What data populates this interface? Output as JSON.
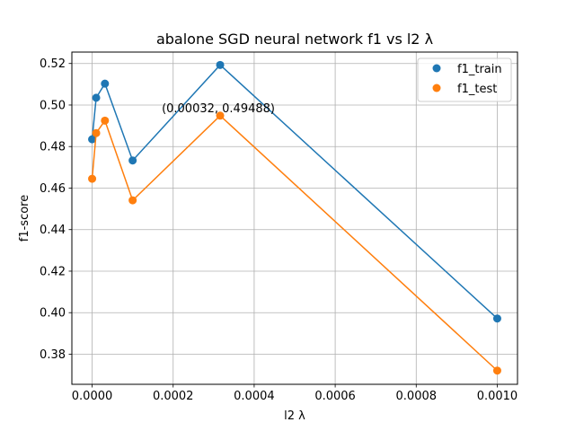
{
  "chart_data": {
    "type": "line",
    "title": "abalone SGD neural network f1 vs l2 λ",
    "xlabel": "l2 λ",
    "ylabel": "f1-score",
    "xlim": [
      -5e-05,
      0.00105
    ],
    "ylim": [
      0.3655,
      0.5255
    ],
    "grid": true,
    "legend_position": "top-right",
    "xticks": [
      0.0,
      0.0002,
      0.0004,
      0.0006,
      0.0008,
      0.001
    ],
    "xtick_labels": [
      "0.0000",
      "0.0002",
      "0.0004",
      "0.0006",
      "0.0008",
      "0.0010"
    ],
    "yticks": [
      0.38,
      0.4,
      0.42,
      0.44,
      0.46,
      0.48,
      0.5,
      0.52
    ],
    "ytick_labels": [
      "0.38",
      "0.40",
      "0.42",
      "0.44",
      "0.46",
      "0.48",
      "0.50",
      "0.52"
    ],
    "x": [
      0.0,
      1e-05,
      3.16e-05,
      0.0001,
      0.000316,
      0.001
    ],
    "series": [
      {
        "name": "f1_train",
        "color": "#1f77b4",
        "values": [
          0.4835,
          0.5035,
          0.5103,
          0.4733,
          0.5193,
          0.3972
        ]
      },
      {
        "name": "f1_test",
        "color": "#ff7f0e",
        "values": [
          0.4645,
          0.4865,
          0.4925,
          0.4541,
          0.49488,
          0.3721
        ]
      }
    ],
    "annotation": {
      "text": "(0.00032, 0.49488)",
      "x": 0.000316,
      "y": 0.49488
    }
  }
}
